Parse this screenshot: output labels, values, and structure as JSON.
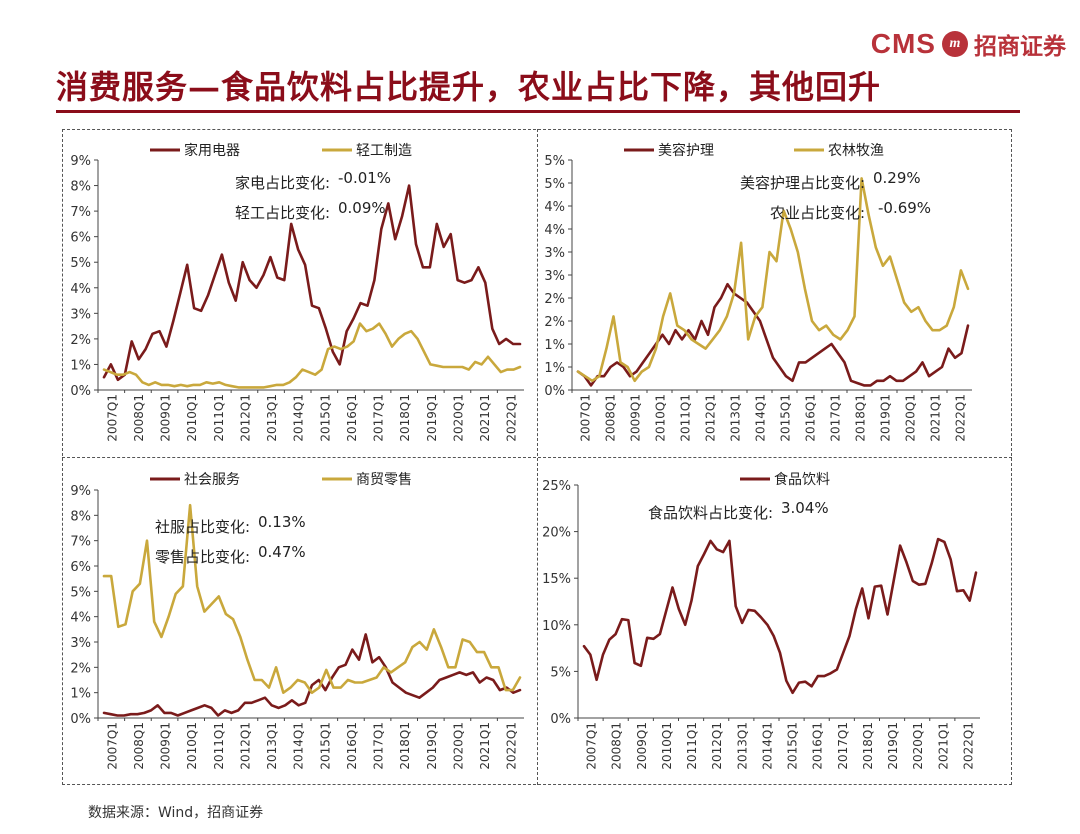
{
  "header": {
    "logo_text": "CMS",
    "logo_mark": "m",
    "logo_cn": "招商证券",
    "title": "消费服务—食品饮料占比提升，农业占比下降，其他回升"
  },
  "source": "数据来源：Wind，招商证券",
  "colors": {
    "brand": "#8b0d1a",
    "maroon": "#7a1b1b",
    "gold": "#c9a83c",
    "axis": "#444444"
  },
  "chart_data": [
    {
      "type": "line",
      "position": "top-left",
      "xlabels": [
        "2007Q1",
        "2008Q1",
        "2009Q1",
        "2010Q1",
        "2011Q1",
        "2012Q1",
        "2013Q1",
        "2014Q1",
        "2015Q1",
        "2016Q1",
        "2017Q1",
        "2018Q1",
        "2019Q1",
        "2020Q1",
        "2021Q1",
        "2022Q1"
      ],
      "ylim": [
        0,
        9
      ],
      "yticks": [
        "0%",
        "1%",
        "2%",
        "3%",
        "4%",
        "5%",
        "6%",
        "7%",
        "8%",
        "9%"
      ],
      "series": [
        {
          "name": "家用电器",
          "color": "#7a1b1b",
          "values": [
            0.5,
            1.0,
            0.4,
            0.6,
            1.9,
            1.2,
            1.6,
            2.2,
            2.3,
            1.7,
            2.7,
            3.8,
            4.9,
            3.2,
            3.1,
            3.7,
            4.5,
            5.3,
            4.2,
            3.5,
            5.0,
            4.3,
            4.0,
            4.5,
            5.2,
            4.4,
            4.3,
            6.5,
            5.5,
            4.9,
            3.3,
            3.2,
            2.4,
            1.5,
            1.0,
            2.3,
            2.8,
            3.4,
            3.3,
            4.3,
            6.3,
            7.3,
            5.9,
            6.8,
            8.0,
            5.7,
            4.8,
            4.8,
            6.5,
            5.6,
            6.1,
            4.3,
            4.2,
            4.3,
            4.8,
            4.2,
            2.4,
            1.8,
            2.0,
            1.8,
            1.8
          ]
        },
        {
          "name": "轻工制造",
          "color": "#c9a83c",
          "values": [
            0.8,
            0.7,
            0.6,
            0.6,
            0.7,
            0.6,
            0.3,
            0.2,
            0.3,
            0.2,
            0.2,
            0.15,
            0.2,
            0.15,
            0.2,
            0.2,
            0.3,
            0.25,
            0.3,
            0.2,
            0.15,
            0.1,
            0.1,
            0.1,
            0.1,
            0.1,
            0.15,
            0.2,
            0.2,
            0.3,
            0.5,
            0.8,
            0.7,
            0.6,
            0.8,
            1.6,
            1.7,
            1.6,
            1.7,
            1.9,
            2.6,
            2.3,
            2.4,
            2.6,
            2.2,
            1.7,
            2.0,
            2.2,
            2.3,
            2.0,
            1.5,
            1.0,
            0.95,
            0.9,
            0.9,
            0.9,
            0.9,
            0.8,
            1.1,
            1.0,
            1.3,
            1.0,
            0.7,
            0.8,
            0.8,
            0.9
          ]
        }
      ],
      "annotations": [
        {
          "label": "家电占比变化:",
          "value": "-0.01%"
        },
        {
          "label": "轻工占比变化:",
          "value": "0.09%"
        }
      ]
    },
    {
      "type": "line",
      "position": "top-right",
      "xlabels": [
        "2007Q1",
        "2008Q1",
        "2009Q1",
        "2010Q1",
        "2011Q1",
        "2012Q1",
        "2013Q1",
        "2014Q1",
        "2015Q1",
        "2016Q1",
        "2017Q1",
        "2018Q1",
        "2019Q1",
        "2020Q1",
        "2021Q1",
        "2022Q1"
      ],
      "ylim": [
        0,
        5
      ],
      "yticks": [
        "0%",
        "1%",
        "1%",
        "2%",
        "2%",
        "3%",
        "3%",
        "4%",
        "4%",
        "5%",
        "5%"
      ],
      "series": [
        {
          "name": "美容护理",
          "color": "#7a1b1b",
          "values": [
            0.4,
            0.3,
            0.1,
            0.3,
            0.3,
            0.5,
            0.6,
            0.5,
            0.3,
            0.4,
            0.6,
            0.8,
            1.0,
            1.2,
            1.0,
            1.3,
            1.1,
            1.3,
            1.1,
            1.5,
            1.2,
            1.8,
            2.0,
            2.3,
            2.1,
            2.0,
            1.9,
            1.7,
            1.5,
            1.1,
            0.7,
            0.5,
            0.3,
            0.2,
            0.6,
            0.6,
            0.7,
            0.8,
            0.9,
            1.0,
            0.8,
            0.6,
            0.2,
            0.15,
            0.1,
            0.1,
            0.2,
            0.2,
            0.3,
            0.2,
            0.2,
            0.3,
            0.4,
            0.6,
            0.3,
            0.4,
            0.5,
            0.9,
            0.7,
            0.8,
            1.4
          ]
        },
        {
          "name": "农林牧渔",
          "color": "#c9a83c",
          "values": [
            0.4,
            0.3,
            0.2,
            0.3,
            0.9,
            1.6,
            0.6,
            0.5,
            0.2,
            0.4,
            0.5,
            0.9,
            1.6,
            2.1,
            1.4,
            1.3,
            1.1,
            1.0,
            0.9,
            1.1,
            1.3,
            1.6,
            2.1,
            3.2,
            1.1,
            1.6,
            1.8,
            3.0,
            2.8,
            3.9,
            3.5,
            3.0,
            2.2,
            1.5,
            1.3,
            1.4,
            1.2,
            1.1,
            1.3,
            1.6,
            4.6,
            3.8,
            3.1,
            2.7,
            2.9,
            2.4,
            1.9,
            1.7,
            1.8,
            1.5,
            1.3,
            1.3,
            1.4,
            1.8,
            2.6,
            2.2
          ]
        }
      ],
      "annotations": [
        {
          "label": "美容护理占比变化:",
          "value": "0.29%"
        },
        {
          "label": "农业占比变化:",
          "value": "-0.69%"
        }
      ]
    },
    {
      "type": "line",
      "position": "bottom-left",
      "xlabels": [
        "2007Q1",
        "2008Q1",
        "2009Q1",
        "2010Q1",
        "2011Q1",
        "2012Q1",
        "2013Q1",
        "2014Q1",
        "2015Q1",
        "2016Q1",
        "2017Q1",
        "2018Q1",
        "2019Q1",
        "2020Q1",
        "2021Q1",
        "2022Q1"
      ],
      "ylim": [
        0,
        9
      ],
      "yticks": [
        "0%",
        "1%",
        "2%",
        "3%",
        "4%",
        "5%",
        "6%",
        "7%",
        "8%",
        "9%"
      ],
      "series": [
        {
          "name": "社会服务",
          "color": "#7a1b1b",
          "values": [
            0.2,
            0.15,
            0.1,
            0.1,
            0.15,
            0.15,
            0.2,
            0.3,
            0.5,
            0.2,
            0.2,
            0.1,
            0.2,
            0.3,
            0.4,
            0.5,
            0.4,
            0.1,
            0.3,
            0.2,
            0.3,
            0.6,
            0.6,
            0.7,
            0.8,
            0.5,
            0.4,
            0.5,
            0.7,
            0.5,
            0.6,
            1.3,
            1.5,
            1.1,
            1.6,
            2.0,
            2.1,
            2.7,
            2.3,
            3.3,
            2.2,
            2.4,
            2.0,
            1.4,
            1.2,
            1.0,
            0.9,
            0.8,
            1.0,
            1.2,
            1.5,
            1.6,
            1.7,
            1.8,
            1.7,
            1.8,
            1.4,
            1.6,
            1.5,
            1.1,
            1.2,
            1.0,
            1.1
          ]
        },
        {
          "name": "商贸零售",
          "color": "#c9a83c",
          "values": [
            5.6,
            5.6,
            3.6,
            3.7,
            5.0,
            5.3,
            7.0,
            3.8,
            3.2,
            4.0,
            4.9,
            5.2,
            8.4,
            5.2,
            4.2,
            4.5,
            4.8,
            4.1,
            3.9,
            3.2,
            2.3,
            1.5,
            1.5,
            1.2,
            2.0,
            1.0,
            1.2,
            1.5,
            1.4,
            1.0,
            1.2,
            1.9,
            1.2,
            1.2,
            1.5,
            1.4,
            1.4,
            1.5,
            1.6,
            2.0,
            1.8,
            2.0,
            2.2,
            2.8,
            3.0,
            2.7,
            3.5,
            2.8,
            2.0,
            2.0,
            3.1,
            3.0,
            2.6,
            2.6,
            2.0,
            2.0,
            1.1,
            1.1,
            1.6
          ]
        }
      ],
      "annotations": [
        {
          "label": "社服占比变化:",
          "value": "0.13%"
        },
        {
          "label": "零售占比变化:",
          "value": "0.47%"
        }
      ]
    },
    {
      "type": "line",
      "position": "bottom-right",
      "xlabels": [
        "2007Q1",
        "2008Q1",
        "2009Q1",
        "2010Q1",
        "2011Q1",
        "2012Q1",
        "2013Q1",
        "2014Q1",
        "2015Q1",
        "2016Q1",
        "2017Q1",
        "2018Q1",
        "2019Q1",
        "2020Q1",
        "2021Q1",
        "2022Q1"
      ],
      "ylim": [
        0,
        25
      ],
      "yticks": [
        "0%",
        "5%",
        "10%",
        "15%",
        "20%",
        "25%"
      ],
      "series": [
        {
          "name": "食品饮料",
          "color": "#7a1b1b",
          "values": [
            7.7,
            6.8,
            4.1,
            6.8,
            8.4,
            9.0,
            10.6,
            10.5,
            5.9,
            5.6,
            8.6,
            8.5,
            9.0,
            11.5,
            14.0,
            11.7,
            10.0,
            12.6,
            16.3,
            17.6,
            19.0,
            18.1,
            17.8,
            19.0,
            12.0,
            10.2,
            11.6,
            11.5,
            10.8,
            10.0,
            8.8,
            7.0,
            4.0,
            2.7,
            3.8,
            3.9,
            3.4,
            4.5,
            4.5,
            4.8,
            5.2,
            7.0,
            8.8,
            11.7,
            13.9,
            10.7,
            14.1,
            14.2,
            11.1,
            14.8,
            18.5,
            16.7,
            14.7,
            14.3,
            14.4,
            16.6,
            19.2,
            18.9,
            17.0,
            13.6,
            13.7,
            12.6,
            15.6
          ]
        }
      ],
      "annotations": [
        {
          "label": "食品饮料占比变化:",
          "value": "3.04%"
        }
      ]
    }
  ]
}
